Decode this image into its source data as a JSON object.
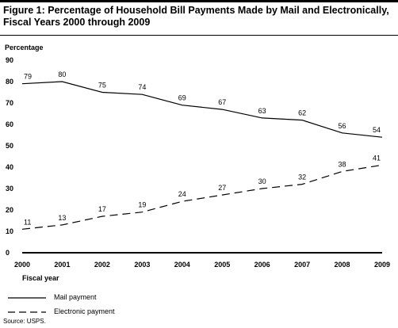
{
  "figure": {
    "title_line1": "Figure 1: Percentage of Household Bill Payments Made by Mail and Electronically,",
    "title_line2": "Fiscal Years 2000 through 2009",
    "source": "Source: USPS."
  },
  "colors": {
    "ink": "#000000",
    "grid": "#d9d9d9"
  },
  "chart_data": {
    "type": "line",
    "title": "Figure 1: Percentage of Household Bill Payments Made by Mail and Electronically, Fiscal Years 2000 through 2009",
    "xlabel": "Fiscal year",
    "ylabel": "Percentage",
    "x": [
      "2000",
      "2001",
      "2002",
      "2003",
      "2004",
      "2005",
      "2006",
      "2007",
      "2008",
      "2009"
    ],
    "ylim": [
      0,
      90
    ],
    "yticks": [
      0,
      10,
      20,
      30,
      40,
      50,
      60,
      70,
      80,
      90
    ],
    "grid": false,
    "legend_position": "bottom-left",
    "series": [
      {
        "name": "Mail payment",
        "style": "solid",
        "values": [
          79,
          80,
          75,
          74,
          69,
          67,
          63,
          62,
          56,
          54
        ]
      },
      {
        "name": "Electronic payment",
        "style": "dashed",
        "values": [
          11,
          13,
          17,
          19,
          24,
          27,
          30,
          32,
          38,
          41
        ]
      }
    ]
  }
}
